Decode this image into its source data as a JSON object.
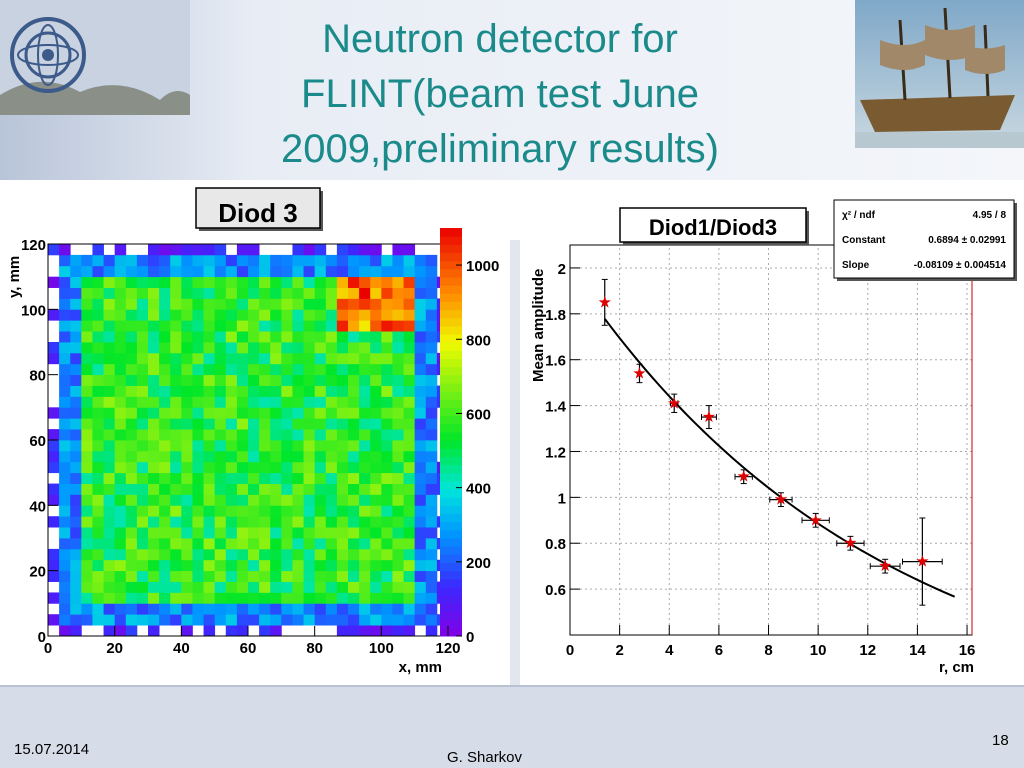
{
  "slide": {
    "title_lines": [
      "Neutron detector for",
      "FLINT(beam test June",
      "2009,preliminary results)"
    ],
    "date": "15.07.2014",
    "author": "G. Sharkov",
    "page_number": "18"
  },
  "colors": {
    "title": "#1a8a8a",
    "fit_curve": "#000000",
    "data_marker": "#e00000"
  },
  "chart_data": [
    {
      "type": "heatmap",
      "title": "Diod 3",
      "xlabel": "x, mm",
      "ylabel": "y, mm",
      "xlim": [
        0,
        120
      ],
      "ylim": [
        0,
        120
      ],
      "x_ticks": [
        "0",
        "20",
        "40",
        "60",
        "80",
        "100",
        "120"
      ],
      "y_ticks": [
        "0",
        "20",
        "40",
        "60",
        "80",
        "100",
        "120"
      ],
      "colorbar_range": [
        0,
        1100
      ],
      "colorbar_ticks": [
        "0",
        "200",
        "400",
        "600",
        "800",
        "1000"
      ],
      "bins": [
        36,
        36
      ],
      "description_of_distribution": "uniform ~600 counts in central square x,y in [10,110]; hot spot ~1000 near x 90-110, y 95-110; sparse low counts at edges"
    },
    {
      "type": "scatter",
      "title": "Diod1/Diod3",
      "xlabel": "r, cm",
      "ylabel": "Mean amplitude",
      "xlim": [
        0,
        16.2
      ],
      "ylim": [
        0.4,
        2.1
      ],
      "x_ticks": [
        "0",
        "2",
        "4",
        "6",
        "8",
        "10",
        "12",
        "14",
        "16"
      ],
      "y_ticks": [
        "0.6",
        "0.8",
        "1",
        "1.2",
        "1.4",
        "1.6",
        "1.8",
        "2"
      ],
      "grid": true,
      "points": [
        {
          "x": 1.4,
          "y": 1.85,
          "xerr": 0.0,
          "yerr": 0.1
        },
        {
          "x": 2.8,
          "y": 1.54,
          "xerr": 0.0,
          "yerr": 0.04
        },
        {
          "x": 4.2,
          "y": 1.41,
          "xerr": 0.15,
          "yerr": 0.04
        },
        {
          "x": 5.6,
          "y": 1.35,
          "xerr": 0.3,
          "yerr": 0.05
        },
        {
          "x": 7.0,
          "y": 1.09,
          "xerr": 0.35,
          "yerr": 0.03
        },
        {
          "x": 8.5,
          "y": 0.99,
          "xerr": 0.45,
          "yerr": 0.03
        },
        {
          "x": 9.9,
          "y": 0.9,
          "xerr": 0.55,
          "yerr": 0.03
        },
        {
          "x": 11.3,
          "y": 0.8,
          "xerr": 0.55,
          "yerr": 0.03
        },
        {
          "x": 12.7,
          "y": 0.7,
          "xerr": 0.6,
          "yerr": 0.03
        },
        {
          "x": 14.2,
          "y": 0.72,
          "xerr": 0.8,
          "yerr": 0.19
        }
      ],
      "fit": {
        "type": "exponential",
        "constant": 0.6894,
        "slope": -0.08109,
        "x_range": [
          1.4,
          15.5
        ]
      },
      "stats_box": [
        {
          "label": "χ² / ndf",
          "value": "4.95 / 8"
        },
        {
          "label": "Constant",
          "value": "0.6894 ± 0.02991"
        },
        {
          "label": "Slope",
          "value": "-0.08109 ± 0.004514"
        }
      ]
    }
  ]
}
